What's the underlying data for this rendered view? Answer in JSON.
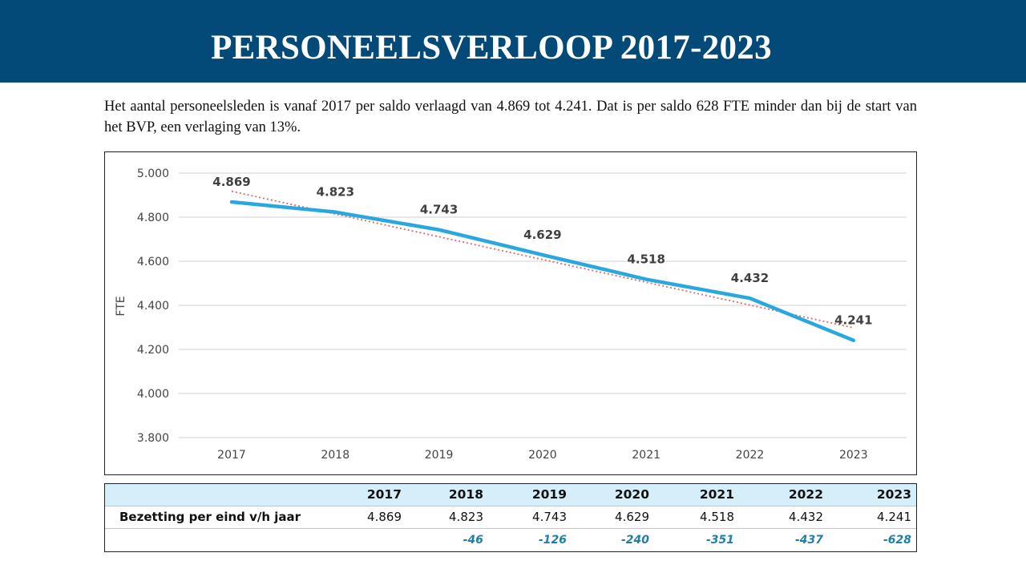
{
  "header": {
    "title": "PERSONEELSVERLOOP 2017-2023"
  },
  "intro_text": "Het aantal personeelsleden is vanaf 2017 per saldo verlaagd van 4.869 tot 4.241. Dat is per saldo 628 FTE minder dan bij de start van het BVP, een verlaging van 13%.",
  "colors": {
    "banner": "#044a78",
    "line": "#29a8df",
    "trend": "#e06666",
    "table_header": "#d6eef9",
    "delta_text": "#1f7fa8"
  },
  "chart_data": {
    "type": "line",
    "title": "",
    "xlabel": "",
    "ylabel": "FTE",
    "categories": [
      "2017",
      "2018",
      "2019",
      "2020",
      "2021",
      "2022",
      "2023"
    ],
    "values": [
      4869,
      4823,
      4743,
      4629,
      4518,
      4432,
      4241
    ],
    "data_labels": [
      "4.869",
      "4.823",
      "4.743",
      "4.629",
      "4.518",
      "4.432",
      "4.241"
    ],
    "trendline": {
      "type": "linear",
      "style": "dotted"
    },
    "ylim": [
      3800,
      5000
    ],
    "yticks": [
      3800,
      4000,
      4200,
      4400,
      4600,
      4800,
      5000
    ],
    "ytick_labels": [
      "3.800",
      "4.000",
      "4.200",
      "4.400",
      "4.600",
      "4.800",
      "5.000"
    ],
    "grid": true,
    "legend": "none"
  },
  "table": {
    "years": [
      "2017",
      "2018",
      "2019",
      "2020",
      "2021",
      "2022",
      "2023"
    ],
    "row_label": "Bezetting per eind v/h jaar",
    "values": [
      "4.869",
      "4.823",
      "4.743",
      "4.629",
      "4.518",
      "4.432",
      "4.241"
    ],
    "deltas": [
      "",
      "-46",
      "-126",
      "-240",
      "-351",
      "-437",
      "-628"
    ]
  }
}
